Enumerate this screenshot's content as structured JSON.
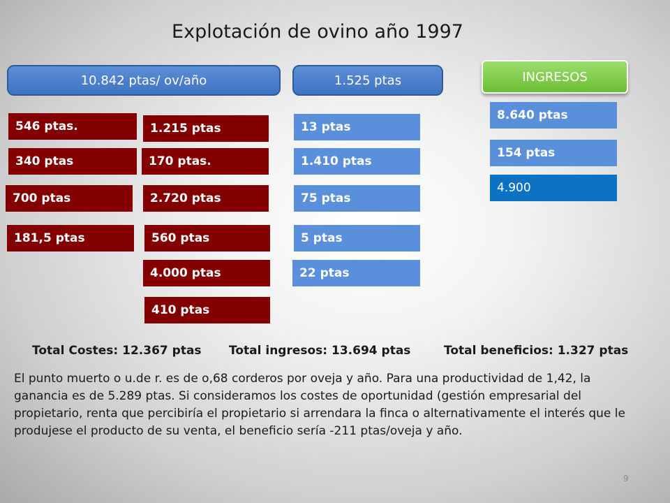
{
  "title": "Explotación de ovino año 1997",
  "headers": {
    "costs_header": "10.842 ptas/ ov/año",
    "mid_header": "1.525 ptas",
    "ingresos": "INGRESOS"
  },
  "red_left": [
    "546 ptas.",
    "340 ptas",
    "700 ptas",
    "181,5 ptas"
  ],
  "red_right": [
    "1.215 ptas",
    "170 ptas.",
    "2.720 ptas",
    "560 ptas",
    "4.000 ptas",
    "410 ptas"
  ],
  "blue_mid": [
    "13 ptas",
    "1.410 ptas",
    "75 ptas",
    "5 ptas",
    "22 ptas"
  ],
  "income": [
    "8.640 ptas",
    "154 ptas",
    "4.900"
  ],
  "totals": {
    "costes": "Total Costes: 12.367 ptas",
    "ingresos": "Total ingresos: 13.694 ptas",
    "beneficios": "Total beneficios: 1.327 ptas"
  },
  "paragraph": "El punto muerto o u.de r.  es de o,68 corderos por oveja y año. Para una productividad de 1,42, la ganancia es de 5.289 ptas. Si consideramos los costes de oportunidad (gestión empresarial del propietario, renta que percibiría el propietario si arrendara la finca o alternativamente el interés que le produjese el producto de su venta, el beneficio sería -211 ptas/oveja y año.",
  "page_number": "9",
  "colors": {
    "cost_red": "#840000",
    "blue": "#5a8fdc",
    "dark_blue": "#0d72c4",
    "green": "#7cc545"
  }
}
